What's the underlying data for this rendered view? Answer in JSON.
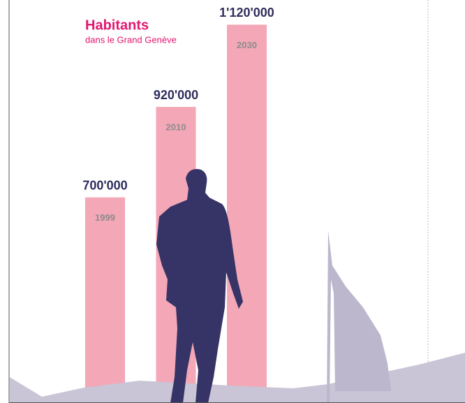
{
  "chart_data": {
    "type": "bar",
    "title": "Habitants",
    "subtitle": "dans le Grand Genève",
    "categories": [
      "1999",
      "2010",
      "2030"
    ],
    "values": [
      700000,
      920000,
      1120000
    ],
    "value_labels": [
      "700'000",
      "920'000",
      "1'120'000"
    ],
    "color": "#f4a7b6",
    "ylim": [
      200000,
      1180000
    ]
  }
}
